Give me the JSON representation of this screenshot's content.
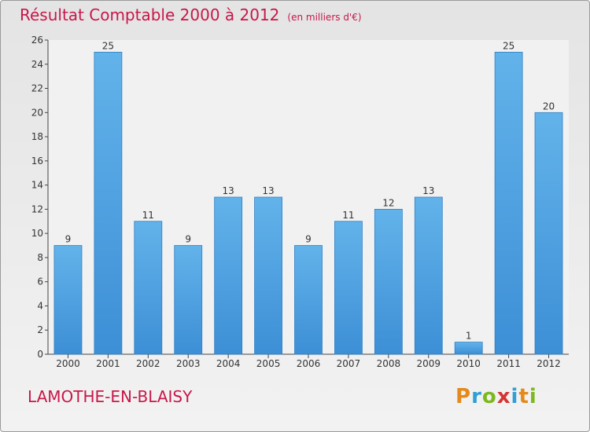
{
  "chart_data": {
    "type": "bar",
    "title": "Résultat Comptable 2000 à 2012",
    "subtitle": "(en milliers d'€)",
    "categories": [
      "2000",
      "2001",
      "2002",
      "2003",
      "2004",
      "2005",
      "2006",
      "2007",
      "2008",
      "2009",
      "2010",
      "2011",
      "2012"
    ],
    "values": [
      9,
      25,
      11,
      9,
      13,
      13,
      9,
      11,
      12,
      13,
      1,
      25,
      20
    ],
    "ylim": [
      0,
      26
    ],
    "yticks": [
      0,
      2,
      4,
      6,
      8,
      10,
      12,
      14,
      16,
      18,
      20,
      22,
      24,
      26
    ],
    "xlabel": "",
    "ylabel": "",
    "grid": false,
    "bar_color": "#3d8fd6",
    "bar_color_light": "#62b3ea"
  },
  "location": "LAMOTHE-EN-BLAISY",
  "logo": {
    "letters": [
      "P",
      "r",
      "o",
      "x",
      "i",
      "t",
      "i"
    ],
    "colors": [
      "#e38a1a",
      "#2f9fd6",
      "#7cb91e",
      "#d63333",
      "#2f9fd6",
      "#e38a1a",
      "#7cb91e"
    ]
  }
}
